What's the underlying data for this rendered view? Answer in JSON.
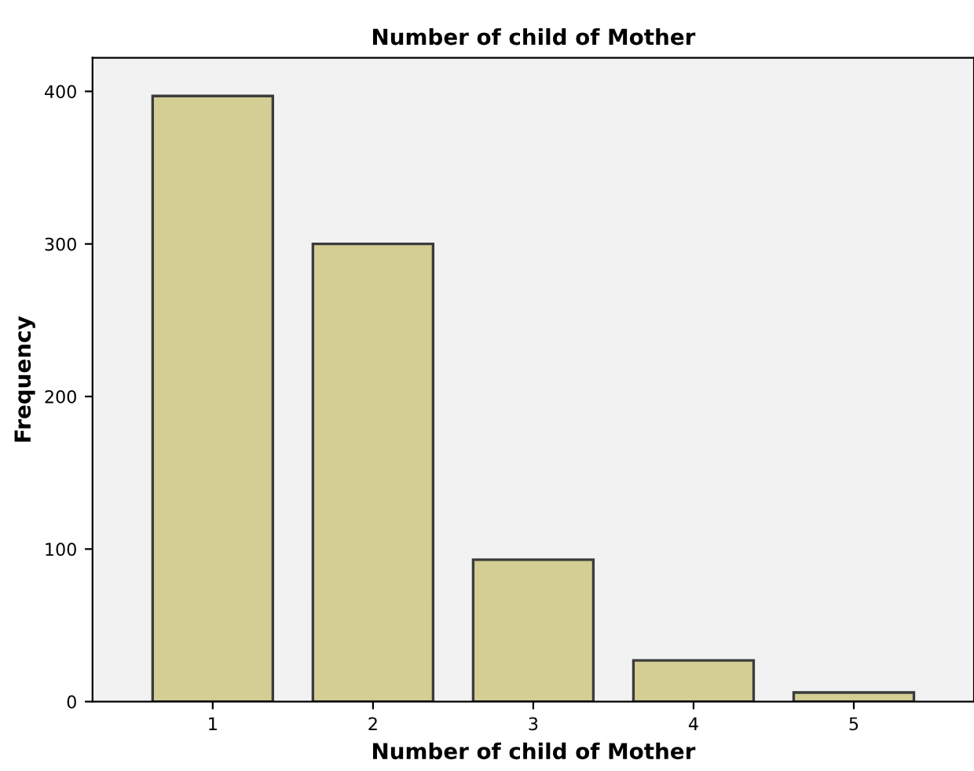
{
  "chart_data": {
    "type": "bar",
    "title": "Number of child of Mother",
    "xlabel": "Number of child of Mother",
    "ylabel": "Frequency",
    "categories": [
      "1",
      "2",
      "3",
      "4",
      "5"
    ],
    "values": [
      397,
      300,
      93,
      27,
      6
    ],
    "color": "#d3ce93",
    "ylim": [
      0,
      422
    ],
    "yticks": [
      0,
      100,
      200,
      300,
      400
    ],
    "grid": false
  }
}
